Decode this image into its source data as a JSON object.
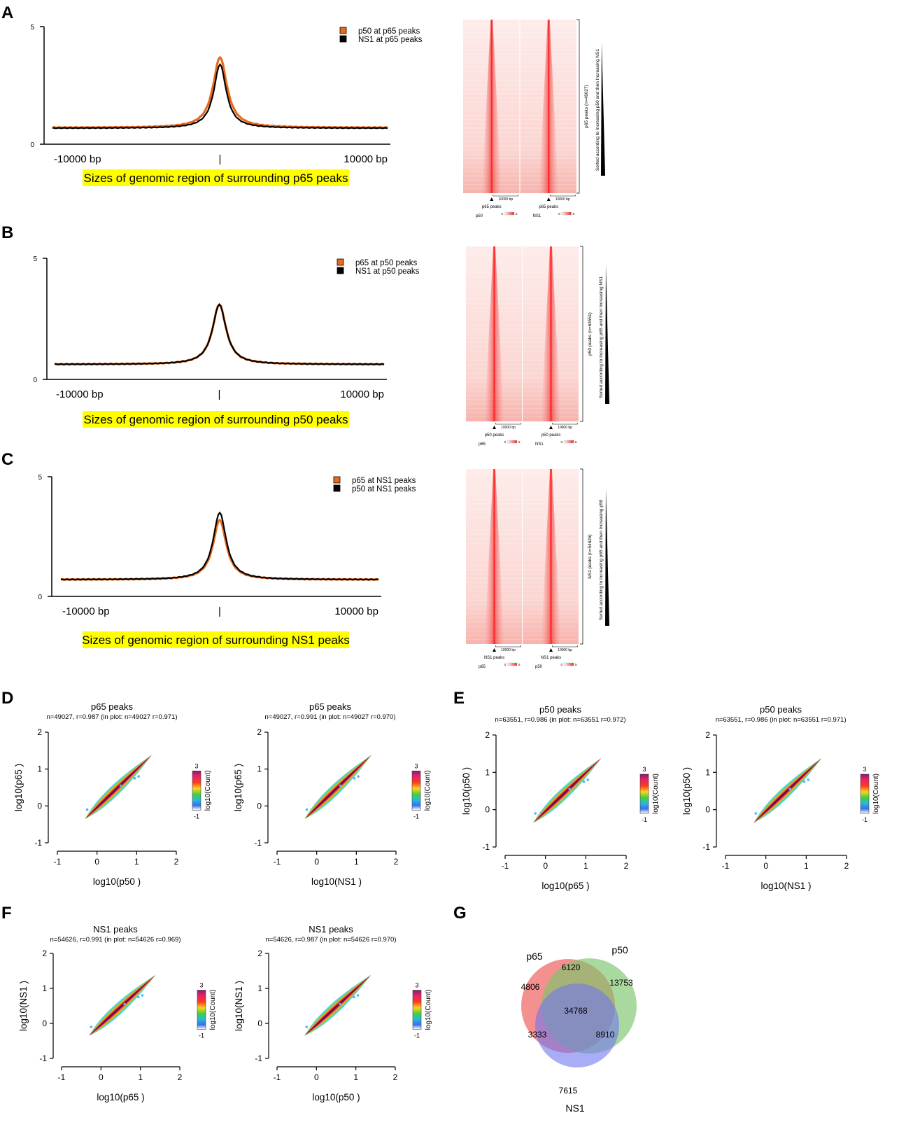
{
  "colors": {
    "orange": "#e86a1c",
    "black": "#000000",
    "yellow": "#ffff00",
    "heat": "#ff2a2a",
    "venn_p65": "#f26b6b",
    "venn_p50": "#7cc46b",
    "venn_ns1": "#6f77ee"
  },
  "chart_data": [
    {
      "panel": "A",
      "type": "line",
      "title": "",
      "xlabel": "Sizes of genomic region of surrounding p65 peaks",
      "x_tick_labels": [
        "-10000 bp",
        "|",
        "10000 bp"
      ],
      "ylim": [
        0,
        5
      ],
      "y_ticks": [
        "5",
        "0"
      ],
      "legend": {
        "position": "top-right",
        "entries": [
          {
            "name": "p50  at p65 peaks",
            "color": "#e86a1c"
          },
          {
            "name": "NS1  at p65 peaks",
            "color": "#000000"
          }
        ]
      },
      "series": [
        {
          "name": "p50  at p65 peaks",
          "baseline": 0.7,
          "peak": 3.7,
          "width": 0.045
        },
        {
          "name": "NS1  at p65 peaks",
          "baseline": 0.68,
          "peak": 3.4,
          "width": 0.04
        }
      ],
      "heatmap": {
        "tracks": [
          {
            "name": "p50",
            "center_label": "p65 peaks"
          },
          {
            "name": "NS1",
            "center_label": "p65 peaks"
          }
        ],
        "scale_label": "10000 bp",
        "colorbar": [
          "0",
          "5"
        ],
        "side_label": "p65 peaks (n=49027)",
        "sort_label": "Sorted according to Increasing p50  and then Increasing NS1"
      }
    },
    {
      "panel": "B",
      "type": "line",
      "title": "",
      "xlabel": "Sizes of genomic region of surrounding p50 peaks",
      "x_tick_labels": [
        "-10000 bp",
        "|",
        "10000 bp"
      ],
      "ylim": [
        0,
        5
      ],
      "y_ticks": [
        "5",
        "0"
      ],
      "legend": {
        "position": "top-right",
        "entries": [
          {
            "name": "p65  at p50 peaks",
            "color": "#e86a1c"
          },
          {
            "name": "NS1  at p50 peaks",
            "color": "#000000"
          }
        ]
      },
      "series": [
        {
          "name": "p65  at p50 peaks",
          "baseline": 0.62,
          "peak": 3.1,
          "width": 0.045
        },
        {
          "name": "NS1  at p50 peaks",
          "baseline": 0.62,
          "peak": 3.1,
          "width": 0.045
        }
      ],
      "heatmap": {
        "tracks": [
          {
            "name": "p65",
            "center_label": "p50 peaks"
          },
          {
            "name": "NS1",
            "center_label": "p50 peaks"
          }
        ],
        "scale_label": "10000 bp",
        "colorbar": [
          "0",
          "5"
        ],
        "side_label": "p50 peaks (n=63551)",
        "sort_label": "Sorted according to Increasing p65  and then Increasing NS1"
      }
    },
    {
      "panel": "C",
      "type": "line",
      "title": "",
      "xlabel": "Sizes of genomic region of surrounding NS1 peaks",
      "x_tick_labels": [
        "-10000 bp",
        "|",
        "10000 bp"
      ],
      "ylim": [
        0,
        5
      ],
      "y_ticks": [
        "5",
        "0"
      ],
      "legend": {
        "position": "top-right",
        "entries": [
          {
            "name": "p65  at NS1 peaks",
            "color": "#e86a1c"
          },
          {
            "name": "p50  at NS1 peaks",
            "color": "#000000"
          }
        ]
      },
      "series": [
        {
          "name": "p65  at NS1 peaks",
          "baseline": 0.7,
          "peak": 3.2,
          "width": 0.045
        },
        {
          "name": "p50  at NS1 peaks",
          "baseline": 0.7,
          "peak": 3.5,
          "width": 0.045
        }
      ],
      "heatmap": {
        "tracks": [
          {
            "name": "p65",
            "center_label": "NS1 peaks"
          },
          {
            "name": "p50",
            "center_label": "NS1 peaks"
          }
        ],
        "scale_label": "10000 bp",
        "colorbar": [
          "0",
          "5"
        ],
        "side_label": "NS1 peaks (n=54626)",
        "sort_label": "Sorted according to Increasing p65  and then Increasing p50"
      }
    },
    {
      "panel": "D",
      "type": "scatter",
      "plots": [
        {
          "title": "p65 peaks",
          "subtitle": "n=49027, r=0.987 (in plot: n=49027 r=0.971)",
          "xlabel": "log10(p50 )",
          "ylabel": "log10(p65 )",
          "xlim": [
            -1,
            2
          ],
          "ylim": [
            -1,
            2
          ],
          "x_ticks": [
            "-1",
            "0",
            "1",
            "2"
          ],
          "y_ticks": [
            "2",
            "1",
            "0",
            "-1"
          ],
          "colorbar": {
            "label": "log10(Count)",
            "max": "3",
            "min": "-1"
          }
        },
        {
          "title": "p65 peaks",
          "subtitle": "n=49027, r=0.991 (in plot: n=49027 r=0.970)",
          "xlabel": "log10(NS1 )",
          "ylabel": "log10(p65 )",
          "xlim": [
            -1,
            2
          ],
          "ylim": [
            -1,
            2
          ],
          "x_ticks": [
            "-1",
            "0",
            "1",
            "2"
          ],
          "y_ticks": [
            "2",
            "1",
            "0",
            "-1"
          ],
          "colorbar": {
            "label": "log10(Count)",
            "max": "3",
            "min": "-1"
          }
        }
      ]
    },
    {
      "panel": "E",
      "type": "scatter",
      "plots": [
        {
          "title": "p50 peaks",
          "subtitle": "n=63551, r=0.986 (in plot: n=63551 r=0.972)",
          "xlabel": "log10(p65 )",
          "ylabel": "log10(p50 )",
          "xlim": [
            -1,
            2
          ],
          "ylim": [
            -1,
            2
          ],
          "x_ticks": [
            "-1",
            "0",
            "1",
            "2"
          ],
          "y_ticks": [
            "2",
            "1",
            "0",
            "-1"
          ],
          "colorbar": {
            "label": "log10(Count)",
            "max": "3",
            "min": "-1"
          }
        },
        {
          "title": "p50 peaks",
          "subtitle": "n=63551, r=0.986 (in plot: n=63551 r=0.971)",
          "xlabel": "log10(NS1 )",
          "ylabel": "log10(p50 )",
          "xlim": [
            -1,
            2
          ],
          "ylim": [
            -1,
            2
          ],
          "x_ticks": [
            "-1",
            "0",
            "1",
            "2"
          ],
          "y_ticks": [
            "2",
            "1",
            "0",
            "-1"
          ],
          "colorbar": {
            "label": "log10(Count)",
            "max": "3",
            "min": "-1"
          }
        }
      ]
    },
    {
      "panel": "F",
      "type": "scatter",
      "plots": [
        {
          "title": "NS1 peaks",
          "subtitle": "n=54626, r=0.991 (in plot: n=54626 r=0.969)",
          "xlabel": "log10(p65 )",
          "ylabel": "log10(NS1 )",
          "xlim": [
            -1,
            2
          ],
          "ylim": [
            -1,
            2
          ],
          "x_ticks": [
            "-1",
            "0",
            "1",
            "2"
          ],
          "y_ticks": [
            "2",
            "1",
            "0",
            "-1"
          ],
          "colorbar": {
            "label": "log10(Count)",
            "max": "3",
            "min": "-1"
          }
        },
        {
          "title": "NS1 peaks",
          "subtitle": "n=54626, r=0.987 (in plot: n=54626 r=0.970)",
          "xlabel": "log10(p50 )",
          "ylabel": "log10(NS1 )",
          "xlim": [
            -1,
            2
          ],
          "ylim": [
            -1,
            2
          ],
          "x_ticks": [
            "-1",
            "0",
            "1",
            "2"
          ],
          "y_ticks": [
            "2",
            "1",
            "0",
            "-1"
          ],
          "colorbar": {
            "label": "log10(Count)",
            "max": "3",
            "min": "-1"
          }
        }
      ]
    },
    {
      "panel": "G",
      "type": "venn",
      "sets": [
        "p65",
        "p50",
        "NS1"
      ],
      "regions": {
        "p65_only": "4806",
        "p50_only": "13753",
        "NS1_only": "7615",
        "p65_p50": "6120",
        "p65_NS1": "3333",
        "p50_NS1": "8910",
        "all": "34768"
      }
    }
  ]
}
